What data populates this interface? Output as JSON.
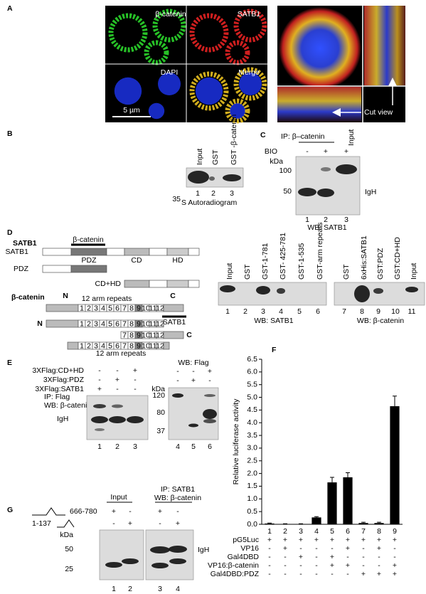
{
  "figure": {
    "A": {
      "label": "A",
      "channels": [
        "β-catenin",
        "SATB1",
        "DAPI",
        "Merge"
      ],
      "scale_bar": "5 µm",
      "cut_view": "Cut view"
    },
    "B": {
      "label": "B",
      "lanes": [
        "Input",
        "GST",
        "GST -β-catenin"
      ],
      "lane_numbers": [
        "1",
        "2",
        "3"
      ],
      "isotope": "35",
      "caption": "S Autoradiogram"
    },
    "C": {
      "label": "C",
      "ip": "IP: β–catenin",
      "input": "Input",
      "bio": "BIO",
      "bio_signs": [
        "-",
        "+",
        "+"
      ],
      "kda": "kDa",
      "markers": [
        "100",
        "50"
      ],
      "band": "IgH",
      "lane_numbers": [
        "1",
        "2",
        "3"
      ],
      "wb": "WB: SATB1"
    },
    "D": {
      "label": "D",
      "satb1_title": "SATB1",
      "binding_partner": "β-catenin",
      "satb1_row": "SATB1",
      "domains": [
        "PDZ",
        "CD",
        "HD"
      ],
      "pdz_row": "PDZ",
      "cdhd_row": "CD+HD",
      "bcat_title": "β-catenin",
      "n_term": "N",
      "c_term": "C",
      "arm_label": "12 arm repeats",
      "arm_numbers": [
        "1",
        "2",
        "3",
        "4",
        "5",
        "6",
        "7",
        "8",
        "9",
        "10",
        "11",
        "12"
      ],
      "satb1_binding": "SATB1",
      "blot1": {
        "lanes": [
          "Input",
          "GST",
          "GST-1-781",
          "GST- 425-781",
          "GST-1-535",
          "GST-arm repeats"
        ],
        "lane_numbers": [
          "1",
          "2",
          "3",
          "4",
          "5",
          "6"
        ],
        "wb": "WB: SATB1"
      },
      "blot2": {
        "lanes": [
          "GST",
          "6xHis:SATB1",
          "GST:PDZ",
          "GST:CD+HD",
          "Input"
        ],
        "lane_numbers": [
          "7",
          "8",
          "9",
          "10",
          "11"
        ],
        "wb": "WB: β-catenin"
      }
    },
    "E": {
      "label": "E",
      "rows": [
        {
          "name": "3XFlag:CD+HD",
          "signs": [
            "-",
            "-",
            "+"
          ]
        },
        {
          "name": "3XFlag:PDZ",
          "signs": [
            "-",
            "+",
            "-"
          ]
        },
        {
          "name": "3XFlag:SATB1",
          "signs": [
            "+",
            "-",
            "-"
          ]
        }
      ],
      "ip": "IP: Flag",
      "wb": "WB: β-catenin",
      "band": "IgH",
      "lane_numbers": [
        "1",
        "2",
        "3"
      ],
      "right_title": "WB: Flag",
      "kda": "kDa",
      "markers": [
        "120",
        "80",
        "37"
      ],
      "right_signs": [
        [
          "-",
          "-",
          "+"
        ],
        [
          "-",
          "+",
          "-"
        ]
      ],
      "right_lane_numbers": [
        "4",
        "5",
        "6"
      ]
    },
    "F": {
      "label": "F",
      "rows": [
        {
          "name": "pG5Luc",
          "signs": [
            "+",
            "+",
            "+",
            "+",
            "+",
            "+",
            "+",
            "+",
            "+"
          ]
        },
        {
          "name": "VP16",
          "signs": [
            "-",
            "+",
            "-",
            "-",
            "-",
            "+",
            "-",
            "+",
            "-"
          ]
        },
        {
          "name": "Gal4DBD",
          "signs": [
            "-",
            "-",
            "+",
            "-",
            "+",
            "-",
            "-",
            "-",
            "-"
          ]
        },
        {
          "name": "VP16:β-catenin",
          "signs": [
            "-",
            "-",
            "-",
            "-",
            "+",
            "+",
            "-",
            "-",
            "+"
          ]
        },
        {
          "name": "Gal4DBD:PDZ",
          "signs": [
            "-",
            "-",
            "-",
            "-",
            "-",
            "-",
            "+",
            "+",
            "+"
          ]
        }
      ]
    },
    "G": {
      "label": "G",
      "input": "Input",
      "ip": "IP: SATB1",
      "wb": "WB: β-catenin",
      "constructs": [
        {
          "name": "666-780",
          "signs": [
            "+",
            "-"
          ],
          "ip_signs": [
            "+",
            "-"
          ]
        },
        {
          "name": "1-137",
          "signs": [
            "-",
            "+"
          ],
          "ip_signs": [
            "-",
            "+"
          ]
        }
      ],
      "kda": "kDa",
      "markers": [
        "50",
        "25"
      ],
      "band": "IgH",
      "lane_numbers": [
        "1",
        "2",
        "3",
        "4"
      ]
    }
  },
  "chart_data": {
    "type": "bar",
    "y_label": "Relative luciferase activity",
    "categories": [
      "1",
      "2",
      "3",
      "4",
      "5",
      "6",
      "7",
      "8",
      "9"
    ],
    "values": [
      0.03,
      0.01,
      0.01,
      0.27,
      1.65,
      1.85,
      0.05,
      0.05,
      4.65
    ],
    "errors": [
      0.02,
      0.01,
      0.01,
      0.03,
      0.2,
      0.18,
      0.03,
      0.03,
      0.4
    ],
    "color": "#000000",
    "ylim": [
      0,
      6.5
    ],
    "yticks": [
      {
        "value": 0,
        "label": "0.0"
      },
      0.5,
      {
        "value": 1,
        "label": "1.0"
      },
      1.5,
      {
        "value": 2,
        "label": "2.0"
      },
      2.5,
      {
        "value": 3,
        "label": "3.0"
      },
      3.5,
      {
        "value": 4,
        "label": "4.0"
      },
      4.5,
      {
        "value": 5,
        "label": "5.0"
      },
      5.5,
      {
        "value": 6,
        "label": "6.0"
      },
      6.5
    ]
  }
}
